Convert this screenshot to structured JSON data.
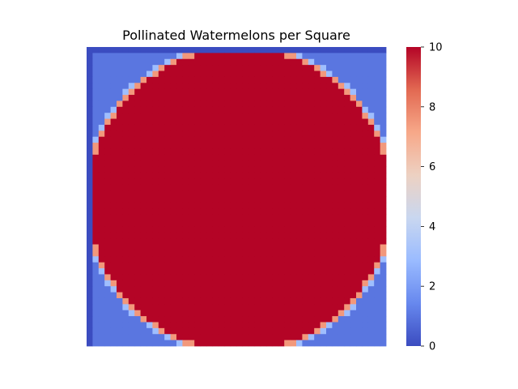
{
  "chart_data": {
    "type": "heatmap",
    "title": "Pollinated Watermelons per Square",
    "xlabel": "",
    "ylabel": "",
    "rows": 50,
    "cols": 50,
    "colormap": "coolwarm",
    "colorbar": {
      "vmin": 0,
      "vmax": 10,
      "ticks": [
        0,
        2,
        4,
        6,
        8,
        10
      ],
      "tick_labels": [
        "0",
        "2",
        "4",
        "6",
        "8",
        "10"
      ],
      "colors": [
        "#3b4cc0",
        "#6788ee",
        "#9abbff",
        "#c9d7f0",
        "#edd1c2",
        "#f7a889",
        "#e26952",
        "#b40426"
      ]
    },
    "value_rule": {
      "border_value": 0,
      "outside_circle_value": 1,
      "circle_boundary_value": 3,
      "inside_circle_value": 10,
      "edge_transition_values": [
        3,
        7.5
      ]
    },
    "grid": false,
    "legend": "colorbar-right"
  }
}
